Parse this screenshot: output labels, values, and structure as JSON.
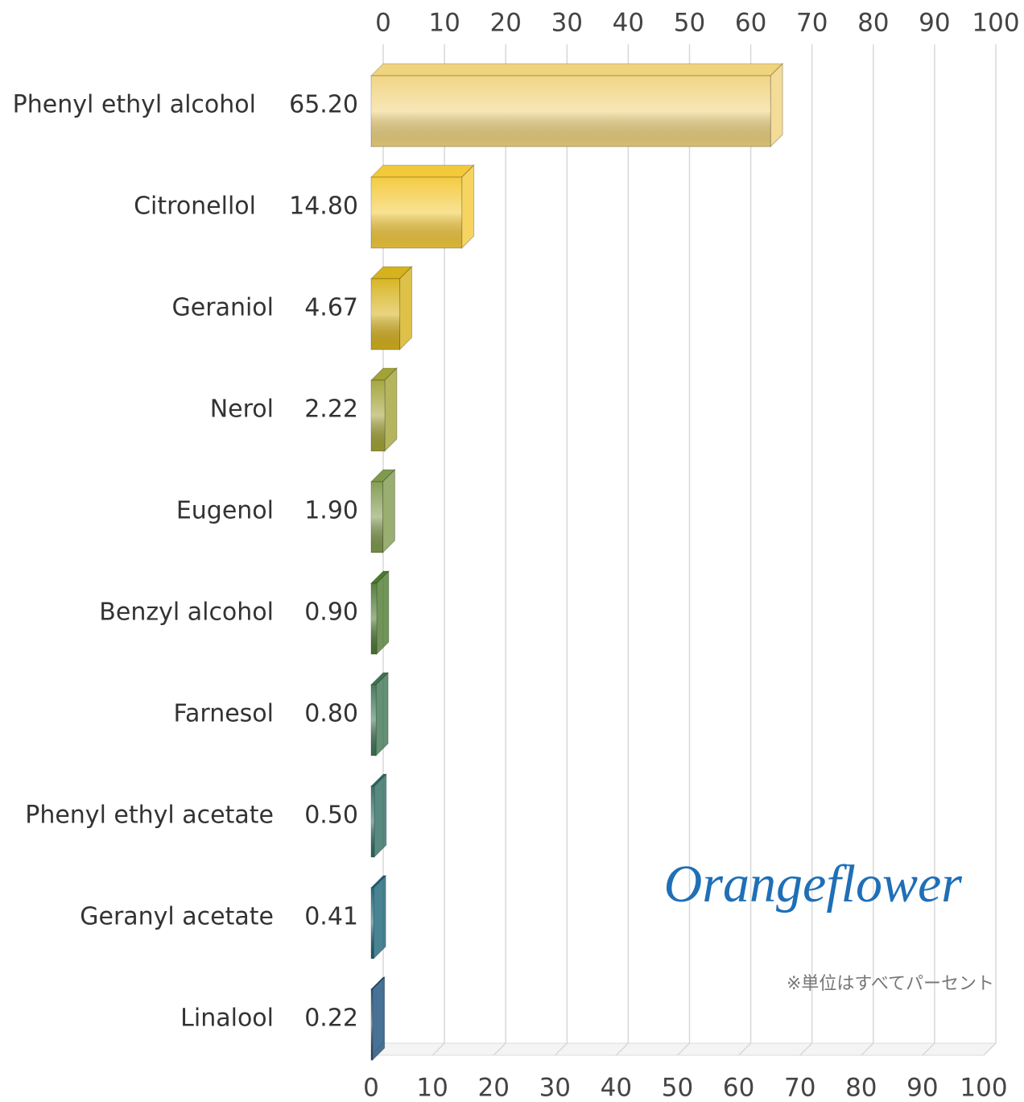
{
  "chart_data": {
    "type": "bar3d_horizontal",
    "categories": [
      "Phenyl ethyl alcohol",
      "Citronellol",
      "Geraniol",
      "Nerol",
      "Eugenol",
      "Benzyl alcohol",
      "Farnesol",
      "Phenyl ethyl acetate",
      "Geranyl acetate",
      "Linalool"
    ],
    "values": [
      65.2,
      14.8,
      4.67,
      2.22,
      1.9,
      0.9,
      0.8,
      0.5,
      0.41,
      0.22
    ],
    "value_labels": [
      "65.20",
      "14.80",
      "4.67",
      "2.22",
      "1.90",
      "0.90",
      "0.80",
      "0.50",
      "0.41",
      "0.22"
    ],
    "colors": [
      "#f0d37e",
      "#f3c93a",
      "#d6b21c",
      "#a3a236",
      "#7f9a4c",
      "#4d7a2f",
      "#3d7652",
      "#2e6c62",
      "#1a6479",
      "#1a4d7c"
    ],
    "xlim": [
      0,
      100
    ],
    "xticks": [
      0,
      10,
      20,
      30,
      40,
      50,
      60,
      70,
      80,
      90,
      100
    ],
    "grid": true,
    "brand": "Orangeflower",
    "note": "※単位はすべてパーセント"
  }
}
